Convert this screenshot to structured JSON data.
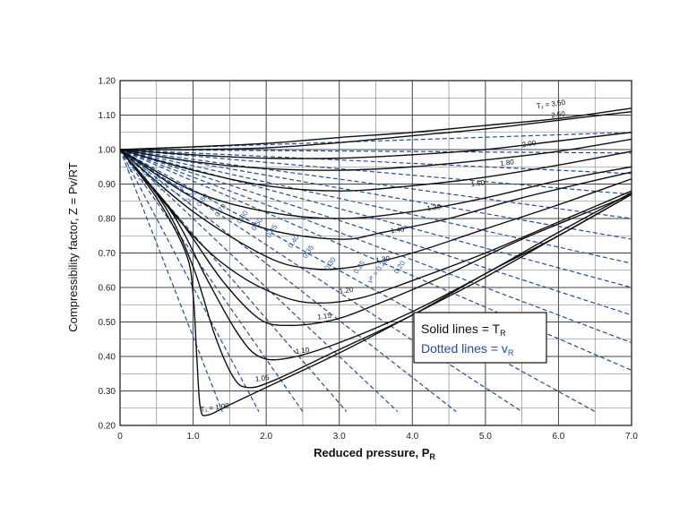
{
  "chart_data": {
    "type": "line",
    "title": "",
    "xlabel": "Reduced pressure, P",
    "xlabel_sub": "R",
    "ylabel": "Compressibility factor, Z = Pv/RT",
    "xlim": [
      0,
      7.0
    ],
    "ylim": [
      0.2,
      1.2
    ],
    "x_ticks": [
      "0",
      "1.0",
      "2.0",
      "3.0",
      "4.0",
      "5.0",
      "6.0",
      "7.0"
    ],
    "y_ticks": [
      "0.20",
      "0.30",
      "0.40",
      "0.50",
      "0.60",
      "0.70",
      "0.80",
      "0.90",
      "1.00",
      "1.10",
      "1.20"
    ],
    "grid": true,
    "legend": {
      "position": "bottom-right",
      "solid_text": "Solid lines = T",
      "solid_sub": "R",
      "dotted_text": "Dotted lines = v",
      "dotted_sub": "R",
      "solid_color": "#111111",
      "dotted_color": "#1f4fa0"
    },
    "series_tr": [
      {
        "label": "T₁ = 3.50",
        "points": [
          [
            0,
            1.0
          ],
          [
            1,
            1.008
          ],
          [
            2,
            1.018
          ],
          [
            3,
            1.035
          ],
          [
            4,
            1.05
          ],
          [
            5,
            1.07
          ],
          [
            6,
            1.09
          ],
          [
            7,
            1.12
          ]
        ]
      },
      {
        "label": "2.50",
        "points": [
          [
            0,
            1.0
          ],
          [
            1,
            1.0
          ],
          [
            2,
            1.005
          ],
          [
            3,
            1.02
          ],
          [
            4,
            1.04
          ],
          [
            5,
            1.06
          ],
          [
            6,
            1.085
          ],
          [
            7,
            1.11
          ]
        ]
      },
      {
        "label": "2.00",
        "points": [
          [
            0,
            1.0
          ],
          [
            1,
            0.985
          ],
          [
            2,
            0.975
          ],
          [
            3,
            0.975
          ],
          [
            4,
            0.985
          ],
          [
            5,
            1.0
          ],
          [
            6,
            1.025
          ],
          [
            7,
            1.05
          ]
        ]
      },
      {
        "label": "1.80",
        "points": [
          [
            0,
            1.0
          ],
          [
            1,
            0.965
          ],
          [
            2,
            0.945
          ],
          [
            3,
            0.94
          ],
          [
            4,
            0.95
          ],
          [
            5,
            0.97
          ],
          [
            6,
            0.995
          ],
          [
            7,
            1.03
          ]
        ]
      },
      {
        "label": "1.60",
        "points": [
          [
            0,
            1.0
          ],
          [
            1,
            0.94
          ],
          [
            2,
            0.895
          ],
          [
            3,
            0.88
          ],
          [
            4,
            0.895
          ],
          [
            5,
            0.92
          ],
          [
            6,
            0.955
          ],
          [
            7,
            0.995
          ]
        ]
      },
      {
        "label": "1.30",
        "points": [
          [
            0,
            1.0
          ],
          [
            1,
            0.88
          ],
          [
            2,
            0.82
          ],
          [
            3,
            0.8
          ],
          [
            4,
            0.82
          ],
          [
            5,
            0.86
          ],
          [
            6,
            0.91
          ],
          [
            7,
            0.95
          ]
        ]
      },
      {
        "label": "1.40",
        "points": [
          [
            0,
            1.0
          ],
          [
            1,
            0.86
          ],
          [
            2,
            0.77
          ],
          [
            3,
            0.74
          ],
          [
            3.6,
            0.76
          ],
          [
            4.5,
            0.8
          ],
          [
            5.5,
            0.86
          ],
          [
            7,
            0.935
          ]
        ]
      },
      {
        "label": "1.30",
        "points": [
          [
            0,
            1.0
          ],
          [
            1,
            0.82
          ],
          [
            2,
            0.69
          ],
          [
            2.6,
            0.655
          ],
          [
            3.2,
            0.66
          ],
          [
            4,
            0.7
          ],
          [
            5,
            0.77
          ],
          [
            6,
            0.84
          ],
          [
            7,
            0.915
          ]
        ]
      },
      {
        "label": "1.20",
        "points": [
          [
            0,
            1.0
          ],
          [
            1,
            0.75
          ],
          [
            1.6,
            0.64
          ],
          [
            2.2,
            0.575
          ],
          [
            2.7,
            0.555
          ],
          [
            3.3,
            0.57
          ],
          [
            4,
            0.62
          ],
          [
            5,
            0.7
          ],
          [
            6,
            0.79
          ],
          [
            7,
            0.88
          ]
        ]
      },
      {
        "label": "1.15",
        "points": [
          [
            0,
            1.0
          ],
          [
            0.8,
            0.8
          ],
          [
            1.4,
            0.62
          ],
          [
            1.9,
            0.51
          ],
          [
            2.3,
            0.49
          ],
          [
            2.9,
            0.505
          ],
          [
            3.5,
            0.55
          ],
          [
            4.5,
            0.64
          ],
          [
            5.5,
            0.74
          ],
          [
            7,
            0.87
          ]
        ]
      },
      {
        "label": "1.10",
        "points": [
          [
            0,
            1.0
          ],
          [
            0.7,
            0.82
          ],
          [
            1.2,
            0.62
          ],
          [
            1.6,
            0.47
          ],
          [
            1.9,
            0.4
          ],
          [
            2.3,
            0.395
          ],
          [
            3,
            0.44
          ],
          [
            4,
            0.53
          ],
          [
            5,
            0.64
          ],
          [
            6,
            0.76
          ],
          [
            7,
            0.875
          ]
        ]
      },
      {
        "label": "1.05",
        "points": [
          [
            0,
            1.0
          ],
          [
            0.6,
            0.84
          ],
          [
            1.0,
            0.66
          ],
          [
            1.3,
            0.46
          ],
          [
            1.55,
            0.34
          ],
          [
            1.75,
            0.31
          ],
          [
            2.1,
            0.33
          ],
          [
            3,
            0.42
          ],
          [
            4,
            0.52
          ],
          [
            5,
            0.64
          ],
          [
            6,
            0.75
          ],
          [
            7,
            0.87
          ]
        ]
      },
      {
        "label": "T₁ = 1.00",
        "points": [
          [
            0,
            1.0
          ],
          [
            0.5,
            0.86
          ],
          [
            0.9,
            0.7
          ],
          [
            1.0,
            0.58
          ],
          [
            1.05,
            0.4
          ],
          [
            1.1,
            0.25
          ],
          [
            1.2,
            0.23
          ],
          [
            1.5,
            0.26
          ],
          [
            2,
            0.31
          ],
          [
            3,
            0.41
          ],
          [
            4,
            0.52
          ],
          [
            5,
            0.63
          ],
          [
            6,
            0.75
          ],
          [
            7,
            0.87
          ]
        ]
      }
    ],
    "series_vr": [
      {
        "label": "",
        "end": [
          7.0,
          1.05
        ]
      },
      {
        "label": "",
        "end": [
          7.0,
          0.99
        ]
      },
      {
        "label": "",
        "end": [
          7.0,
          0.93
        ]
      },
      {
        "label": "",
        "end": [
          7.0,
          0.87
        ]
      },
      {
        "label": "",
        "end": [
          7.0,
          0.8
        ]
      },
      {
        "label": "",
        "end": [
          7.0,
          0.74
        ]
      },
      {
        "label": "",
        "end": [
          7.0,
          0.67
        ]
      },
      {
        "label": "",
        "end": [
          7.0,
          0.6
        ]
      },
      {
        "label": "",
        "end": [
          7.0,
          0.52
        ]
      },
      {
        "label": "",
        "end": [
          7.0,
          0.44
        ]
      },
      {
        "label": "",
        "end": [
          7.0,
          0.36
        ]
      },
      {
        "label": "",
        "end": [
          6.5,
          0.24
        ]
      },
      {
        "label": "",
        "end": [
          5.5,
          0.24
        ]
      },
      {
        "label": "",
        "end": [
          4.6,
          0.24
        ]
      },
      {
        "label": "",
        "end": [
          3.8,
          0.24
        ]
      },
      {
        "label": "",
        "end": [
          3.1,
          0.24
        ]
      },
      {
        "label": "",
        "end": [
          2.5,
          0.24
        ]
      },
      {
        "label": "",
        "end": [
          1.9,
          0.24
        ]
      },
      {
        "label": "",
        "end": [
          1.4,
          0.24
        ]
      }
    ],
    "tr_labels": [
      {
        "text": "T₁ = 3.50",
        "x": 5.9,
        "y": 1.125
      },
      {
        "text": "2.50",
        "x": 6.0,
        "y": 1.095
      },
      {
        "text": "2.00",
        "x": 5.6,
        "y": 1.01
      },
      {
        "text": "1.80",
        "x": 5.3,
        "y": 0.955
      },
      {
        "text": "1.60",
        "x": 4.9,
        "y": 0.895
      },
      {
        "text": "1.30",
        "x": 4.3,
        "y": 0.825
      },
      {
        "text": "1.40",
        "x": 3.8,
        "y": 0.76
      },
      {
        "text": "1.30",
        "x": 3.6,
        "y": 0.675
      },
      {
        "text": "1.20",
        "x": 3.1,
        "y": 0.585
      },
      {
        "text": "1.15",
        "x": 2.8,
        "y": 0.51
      },
      {
        "text": "1.10",
        "x": 2.5,
        "y": 0.41
      },
      {
        "text": "1.05",
        "x": 1.95,
        "y": 0.33
      },
      {
        "text": "T₁ = 1.00",
        "x": 1.3,
        "y": 0.245
      }
    ],
    "vr_labels": [
      {
        "text": "0.20",
        "x": 3.85,
        "y": 0.655
      },
      {
        "text": "vᴿ = 0.20",
        "x": 3.55,
        "y": 0.645
      },
      {
        "text": "0.25",
        "x": 3.3,
        "y": 0.655
      },
      {
        "text": "0.30",
        "x": 2.9,
        "y": 0.665
      },
      {
        "text": "0.35",
        "x": 2.6,
        "y": 0.7
      },
      {
        "text": "0.40",
        "x": 2.4,
        "y": 0.73
      },
      {
        "text": "0.45",
        "x": 2.1,
        "y": 0.76
      },
      {
        "text": "0.50",
        "x": 1.9,
        "y": 0.78
      },
      {
        "text": "0.60",
        "x": 1.7,
        "y": 0.8
      },
      {
        "text": "0.70",
        "x": 1.4,
        "y": 0.82
      },
      {
        "text": "0.80",
        "x": 1.15,
        "y": 0.85
      },
      {
        "text": "0.90",
        "x": 1.0,
        "y": 0.86
      },
      {
        "text": "1.00",
        "x": 0.85,
        "y": 0.88
      },
      {
        "text": "1.20",
        "x": 0.65,
        "y": 0.89
      },
      {
        "text": "1.40",
        "x": 0.5,
        "y": 0.9
      },
      {
        "text": "1.60",
        "x": 0.35,
        "y": 0.92
      },
      {
        "text": "2.00",
        "x": 0.2,
        "y": 0.95
      }
    ]
  }
}
